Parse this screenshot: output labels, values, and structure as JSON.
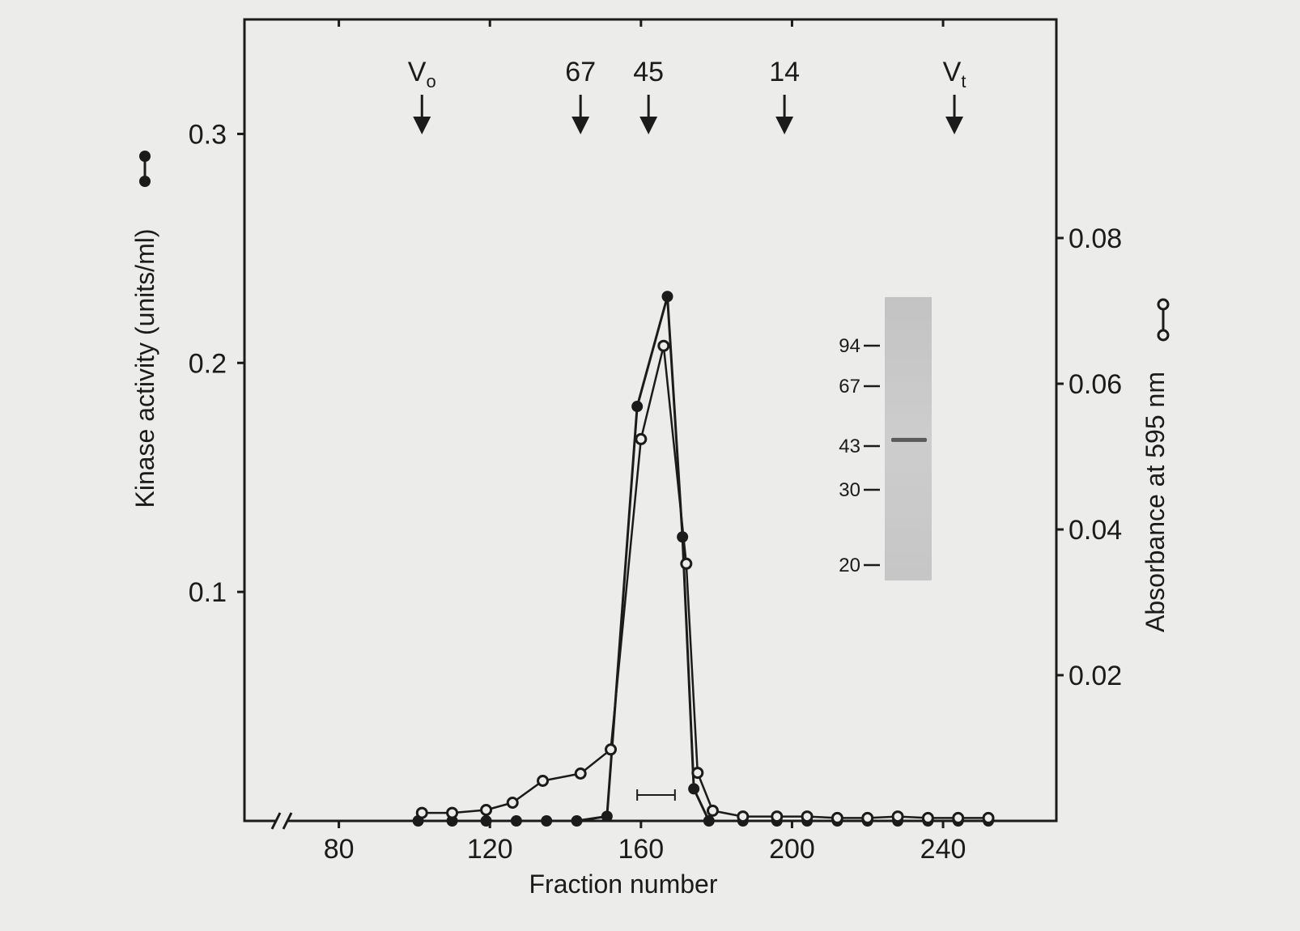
{
  "chart_data": {
    "type": "line",
    "xlabel": "Fraction number",
    "ylabel_left": "Kinase activity (units/ml)",
    "ylabel_right": "Absorbance at 595 nm",
    "xlim": [
      55,
      270
    ],
    "ylim_left": [
      0,
      0.35
    ],
    "ylim_right": [
      0,
      0.11
    ],
    "x_ticks": [
      80,
      120,
      160,
      200,
      240
    ],
    "x_tick_labels": [
      "80",
      "120",
      "160",
      "200",
      "240"
    ],
    "y_left_ticks": [
      0.1,
      0.2,
      0.3
    ],
    "y_left_tick_labels": [
      "0.1",
      "0.2",
      "0.3"
    ],
    "y_right_ticks": [
      0.02,
      0.04,
      0.06,
      0.08
    ],
    "y_right_tick_labels": [
      "0.02",
      "0.04",
      "0.06",
      "0.08"
    ],
    "axis_break": true,
    "grid": false,
    "size_markers": [
      {
        "label": "V",
        "subscript": "o",
        "x": 102
      },
      {
        "label": "67",
        "subscript": "",
        "x": 144
      },
      {
        "label": "45",
        "subscript": "",
        "x": 162
      },
      {
        "label": "14",
        "subscript": "",
        "x": 198
      },
      {
        "label": "V",
        "subscript": "t",
        "x": 243
      }
    ],
    "pooled_range": [
      159,
      169
    ],
    "series": [
      {
        "marker": "filled",
        "axis": "left",
        "x": [
          101,
          110,
          119,
          127,
          135,
          143,
          151,
          159,
          167,
          171,
          174,
          178,
          187,
          196,
          204,
          212,
          220,
          228,
          236,
          244,
          252
        ],
        "y": [
          0,
          0,
          0,
          0,
          0,
          0,
          0.002,
          0.181,
          0.229,
          0.124,
          0.014,
          0,
          0,
          0,
          0,
          0,
          0,
          0,
          0,
          0,
          0
        ]
      },
      {
        "marker": "open",
        "axis": "right",
        "x": [
          102,
          110,
          119,
          126,
          134,
          144,
          152,
          160,
          166,
          172,
          175,
          179,
          187,
          196,
          204,
          212,
          220,
          228,
          236,
          244,
          252
        ],
        "y": [
          0.0011,
          0.0011,
          0.0015,
          0.0025,
          0.0055,
          0.0065,
          0.0098,
          0.0524,
          0.0652,
          0.0353,
          0.0066,
          0.0014,
          0.0006,
          0.0006,
          0.0006,
          0.0004,
          0.0004,
          0.0006,
          0.0004,
          0.0004,
          0.0004
        ]
      }
    ],
    "inset_gel": {
      "ladder_labels": [
        "94",
        "67",
        "43",
        "30",
        "20"
      ],
      "ladder_values": [
        94,
        67,
        43,
        30,
        20
      ],
      "band_mw": 45
    }
  }
}
